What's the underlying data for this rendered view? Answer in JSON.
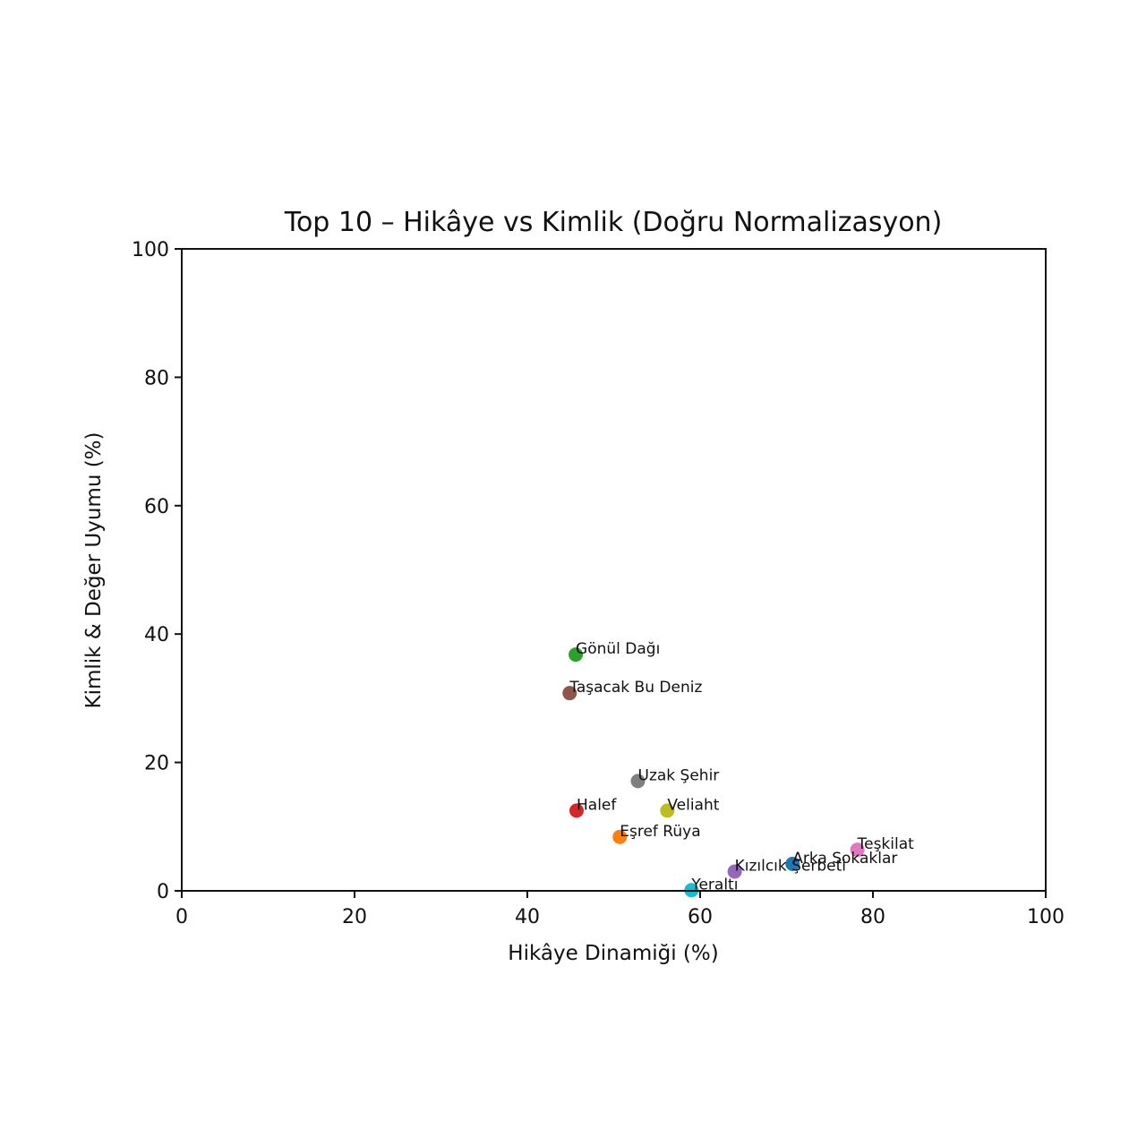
{
  "chart_data": {
    "type": "scatter",
    "title": "Top 10 – Hikâye vs Kimlik (Doğru Normalizasyon)",
    "xlabel": "Hikâye Dinamiği (%)",
    "ylabel": "Kimlik & Değer Uyumu (%)",
    "xlim": [
      0,
      100
    ],
    "ylim": [
      0,
      100
    ],
    "xticks": [
      0,
      20,
      40,
      60,
      80,
      100
    ],
    "yticks": [
      0,
      20,
      40,
      60,
      80,
      100
    ],
    "grid": false,
    "legend": "none",
    "points": [
      {
        "label": "Gönül Dağı",
        "x": 45.6,
        "y": 36.8,
        "color": "#2ca02c"
      },
      {
        "label": "Taşacak Bu Deniz",
        "x": 44.9,
        "y": 30.8,
        "color": "#8c564b"
      },
      {
        "label": "Uzak Şehir",
        "x": 52.8,
        "y": 17.1,
        "color": "#7f7f7f"
      },
      {
        "label": "Halef",
        "x": 45.7,
        "y": 12.5,
        "color": "#d62728"
      },
      {
        "label": "Veliaht",
        "x": 56.2,
        "y": 12.5,
        "color": "#bcbd22"
      },
      {
        "label": "Eşref Rüya",
        "x": 50.7,
        "y": 8.4,
        "color": "#ff7f0e"
      },
      {
        "label": "Teşkilat",
        "x": 78.2,
        "y": 6.4,
        "color": "#e377c2"
      },
      {
        "label": "Arka Sokaklar",
        "x": 70.7,
        "y": 4.2,
        "color": "#1f77b4"
      },
      {
        "label": "Kızılcık Şerbeti",
        "x": 64.0,
        "y": 3.0,
        "color": "#9467bd"
      },
      {
        "label": "Yeraltı",
        "x": 59.0,
        "y": 0.1,
        "color": "#17becf"
      }
    ]
  }
}
